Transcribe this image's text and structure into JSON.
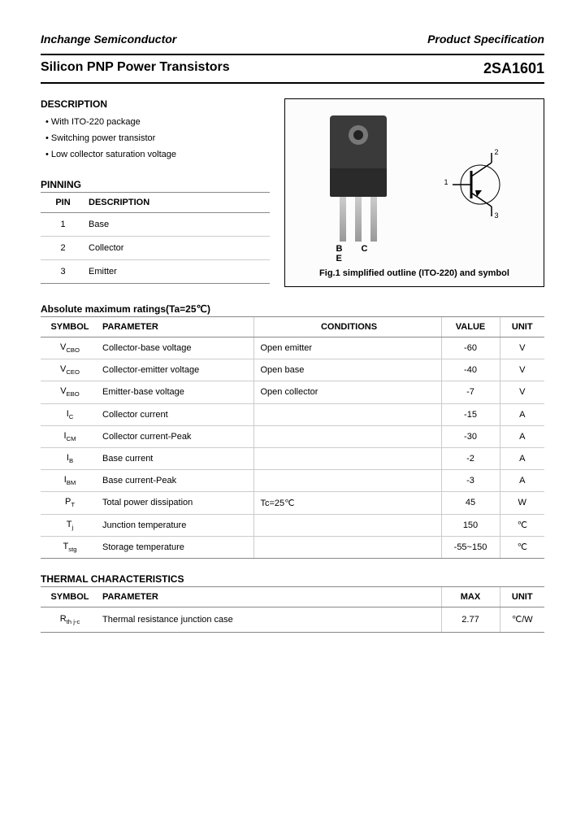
{
  "header": {
    "company": "Inchange Semiconductor",
    "doctype": "Product Specification"
  },
  "title": {
    "left": "Silicon PNP Power Transistors",
    "right": "2SA1601"
  },
  "description": {
    "heading": "DESCRIPTION",
    "items": [
      "With ITO-220 package",
      "Switching power transistor",
      "Low collector saturation voltage"
    ]
  },
  "pinning": {
    "heading": "PINNING",
    "columns": [
      "PIN",
      "DESCRIPTION"
    ],
    "rows": [
      {
        "pin": "1",
        "desc": "Base"
      },
      {
        "pin": "2",
        "desc": "Collector"
      },
      {
        "pin": "3",
        "desc": "Emitter"
      }
    ]
  },
  "figure": {
    "pin_labels": "B C E",
    "symbol_pins": {
      "p1": "1",
      "p2": "2",
      "p3": "3"
    },
    "caption": "Fig.1 simplified outline (ITO-220) and symbol",
    "pkg_colors": {
      "body": "#3a3a3a",
      "step": "#2a2a2a",
      "hole_outer": "#777777",
      "hole_inner": "#222222",
      "lead": "#bcbcbc"
    }
  },
  "ratings": {
    "heading": "Absolute maximum ratings(Ta=25℃)",
    "columns": [
      "SYMBOL",
      "PARAMETER",
      "CONDITIONS",
      "VALUE",
      "UNIT"
    ],
    "rows": [
      {
        "sym": "V",
        "sub": "CBO",
        "param": "Collector-base voltage",
        "cond": "Open emitter",
        "val": "-60",
        "unit": "V"
      },
      {
        "sym": "V",
        "sub": "CEO",
        "param": "Collector-emitter voltage",
        "cond": "Open base",
        "val": "-40",
        "unit": "V"
      },
      {
        "sym": "V",
        "sub": "EBO",
        "param": "Emitter-base voltage",
        "cond": "Open collector",
        "val": "-7",
        "unit": "V"
      },
      {
        "sym": "I",
        "sub": "C",
        "param": "Collector current",
        "cond": "",
        "val": "-15",
        "unit": "A"
      },
      {
        "sym": "I",
        "sub": "CM",
        "param": "Collector current-Peak",
        "cond": "",
        "val": "-30",
        "unit": "A"
      },
      {
        "sym": "I",
        "sub": "B",
        "param": "Base current",
        "cond": "",
        "val": "-2",
        "unit": "A"
      },
      {
        "sym": "I",
        "sub": "BM",
        "param": "Base current-Peak",
        "cond": "",
        "val": "-3",
        "unit": "A"
      },
      {
        "sym": "P",
        "sub": "T",
        "param": "Total power dissipation",
        "cond": "Tc=25℃",
        "val": "45",
        "unit": "W"
      },
      {
        "sym": "T",
        "sub": "j",
        "param": "Junction temperature",
        "cond": "",
        "val": "150",
        "unit": "℃"
      },
      {
        "sym": "T",
        "sub": "stg",
        "param": "Storage temperature",
        "cond": "",
        "val": "-55~150",
        "unit": "℃"
      }
    ]
  },
  "thermal": {
    "heading": "THERMAL CHARACTERISTICS",
    "columns": [
      "SYMBOL",
      "PARAMETER",
      "MAX",
      "UNIT"
    ],
    "rows": [
      {
        "sym": "R",
        "sub": "th j-c",
        "param": "Thermal resistance junction case",
        "max": "2.77",
        "unit": "℃/W"
      }
    ]
  },
  "colors": {
    "rule_dark": "#000000",
    "rule_light": "#cccccc",
    "text": "#000000",
    "bg": "#ffffff"
  }
}
